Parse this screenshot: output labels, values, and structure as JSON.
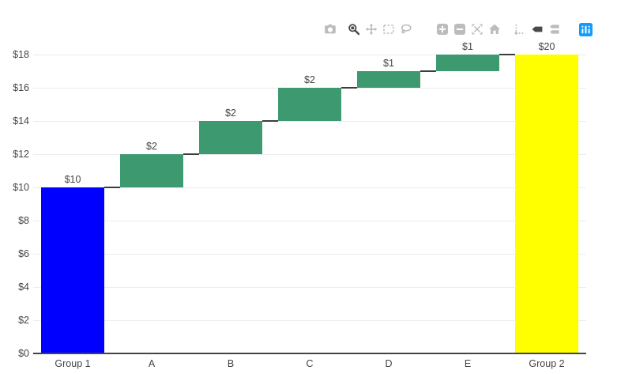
{
  "modebar": {
    "buttons": [
      {
        "name": "camera",
        "icon": "camera-icon",
        "label": "Download plot as a png",
        "active": false
      },
      {
        "name": "zoom",
        "icon": "magnifier-icon",
        "label": "Zoom",
        "active": true
      },
      {
        "name": "pan",
        "icon": "pan-arrows-icon",
        "label": "Pan",
        "active": false
      },
      {
        "name": "box-select",
        "icon": "box-select-icon",
        "label": "Box Select",
        "active": false
      },
      {
        "name": "lasso-select",
        "icon": "lasso-icon",
        "label": "Lasso Select",
        "active": false
      },
      {
        "name": "zoom-in",
        "icon": "zoom-in-icon",
        "label": "Zoom in",
        "active": false
      },
      {
        "name": "zoom-out",
        "icon": "zoom-out-icon",
        "label": "Zoom out",
        "active": false
      },
      {
        "name": "autoscale",
        "icon": "autoscale-icon",
        "label": "Autoscale",
        "active": false
      },
      {
        "name": "reset-axes",
        "icon": "home-icon",
        "label": "Reset axes",
        "active": false
      },
      {
        "name": "toggle-spike-lines",
        "icon": "spikelines-icon",
        "label": "Toggle Spike Lines",
        "active": false
      },
      {
        "name": "hover-closest",
        "icon": "hover-closest-tag-icon",
        "label": "Show closest data on hover",
        "active": true
      },
      {
        "name": "hover-compare",
        "icon": "hover-compare-tags-icon",
        "label": "Compare data on hover",
        "active": false
      },
      {
        "name": "plotly-logo",
        "icon": "plotly-logo-icon",
        "label": "Produced with Plotly",
        "active": false
      }
    ],
    "colors": {
      "idle": "#bcbcbc",
      "active": "#4a4a4a",
      "logo_bg": "#119dff"
    }
  },
  "chart_data": {
    "type": "waterfall",
    "title": "",
    "xlabel": "",
    "ylabel": "",
    "categories": [
      "Group 1",
      "A",
      "B",
      "C",
      "D",
      "E",
      "Group 2"
    ],
    "values": [
      10,
      2,
      2,
      2,
      1,
      1,
      20
    ],
    "bases": [
      0,
      10,
      12,
      14,
      16,
      17,
      0
    ],
    "cumulative_tops": [
      10,
      12,
      14,
      16,
      17,
      18,
      20
    ],
    "bar_labels": [
      "$10",
      "$2",
      "$2",
      "$2",
      "$1",
      "$1",
      "$20"
    ],
    "bar_colors": [
      "#0000ff",
      "#3d9970",
      "#3d9970",
      "#3d9970",
      "#3d9970",
      "#3d9970",
      "#ffff00"
    ],
    "y_axis": {
      "min": 0,
      "max": 18,
      "tick_step": 2,
      "tick_prefix": "$",
      "tick_labels": [
        "$0",
        "$2",
        "$4",
        "$6",
        "$8",
        "$10",
        "$12",
        "$14",
        "$16",
        "$18"
      ]
    },
    "grid": true,
    "legend": false,
    "colors": {
      "grid": "#ececec",
      "axis_line": "#444444",
      "connector": "#3d3d3d",
      "text": "#444444",
      "background": "#ffffff"
    }
  }
}
